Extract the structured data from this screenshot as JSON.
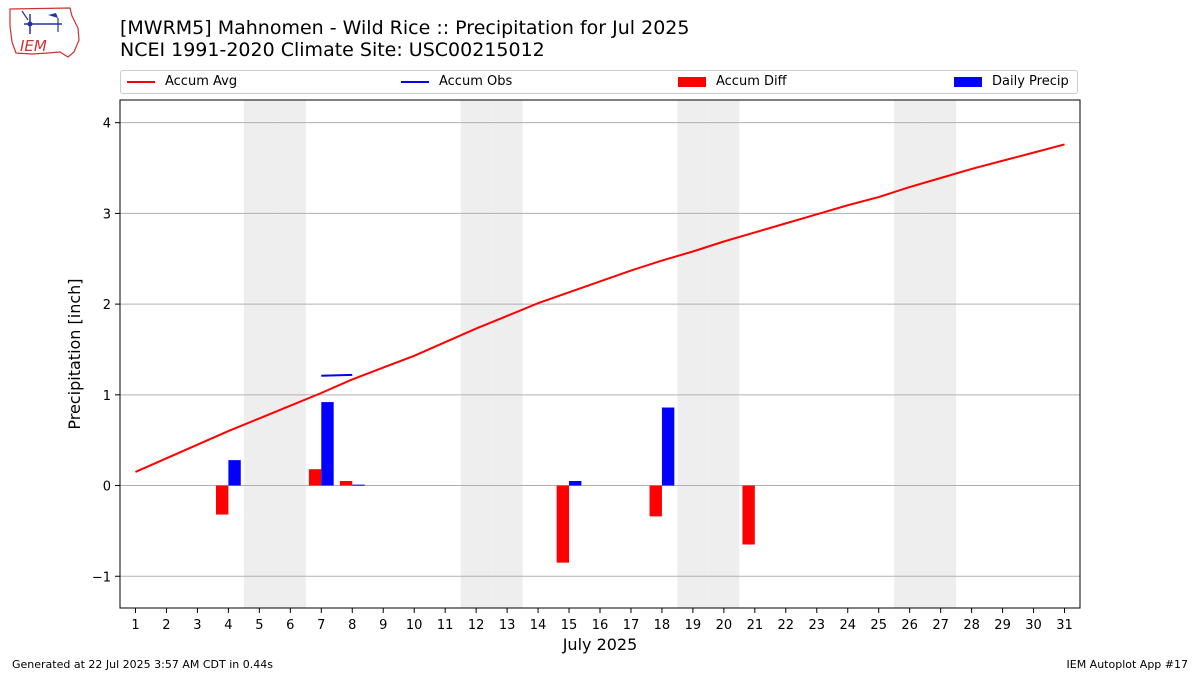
{
  "header": {
    "title_line1": "[MWRM5] Mahnomen - Wild Rice :: Precipitation for Jul 2025",
    "title_line2": "NCEI 1991-2020 Climate Site: USC00215012",
    "logo_text": "IEM"
  },
  "footer": {
    "left": "Generated at 22 Jul 2025 3:57 AM CDT in 0.44s",
    "right": "IEM Autoplot App #17"
  },
  "colors": {
    "accum_avg": "#ff0000",
    "accum_obs": "#0000ff",
    "accum_diff": "#ff0000",
    "daily_precip": "#0000ff",
    "weekend_shade": "#eeeeee",
    "grid": "#b0b0b0"
  },
  "chart_data": {
    "type": "bar",
    "xlabel": "July 2025",
    "ylabel": "Precipitation [inch]",
    "ylim": [
      -1.35,
      4.25
    ],
    "yticks": [
      -1,
      0,
      1,
      2,
      3,
      4
    ],
    "ytick_labels": [
      "−1",
      "0",
      "1",
      "2",
      "3",
      "4"
    ],
    "days": [
      1,
      2,
      3,
      4,
      5,
      6,
      7,
      8,
      9,
      10,
      11,
      12,
      13,
      14,
      15,
      16,
      17,
      18,
      19,
      20,
      21,
      22,
      23,
      24,
      25,
      26,
      27,
      28,
      29,
      30,
      31
    ],
    "grid": "horizontal",
    "legend_position": "top",
    "weekend_days": [
      5,
      6,
      12,
      13,
      19,
      20,
      26,
      27
    ],
    "series": [
      {
        "name": "Accum Avg",
        "kind": "line",
        "values": [
          0.15,
          0.3,
          0.45,
          0.6,
          0.74,
          0.88,
          1.02,
          1.17,
          1.3,
          1.43,
          1.58,
          1.73,
          1.87,
          2.01,
          2.13,
          2.25,
          2.37,
          2.48,
          2.58,
          2.69,
          2.79,
          2.89,
          2.99,
          3.09,
          3.18,
          3.29,
          3.39,
          3.49,
          3.58,
          3.67,
          3.76
        ]
      },
      {
        "name": "Accum Obs",
        "kind": "line",
        "x": [
          7,
          8
        ],
        "values": [
          1.21,
          1.22
        ]
      },
      {
        "name": "Accum Diff",
        "kind": "bar",
        "days": [
          4,
          7,
          8,
          15,
          18,
          21
        ],
        "values": [
          -0.32,
          0.18,
          0.05,
          -0.85,
          -0.34,
          -0.65
        ]
      },
      {
        "name": "Daily Precip",
        "kind": "bar",
        "days": [
          4,
          7,
          8,
          15,
          18
        ],
        "values": [
          0.28,
          0.92,
          0.01,
          0.05,
          0.86
        ]
      }
    ]
  }
}
